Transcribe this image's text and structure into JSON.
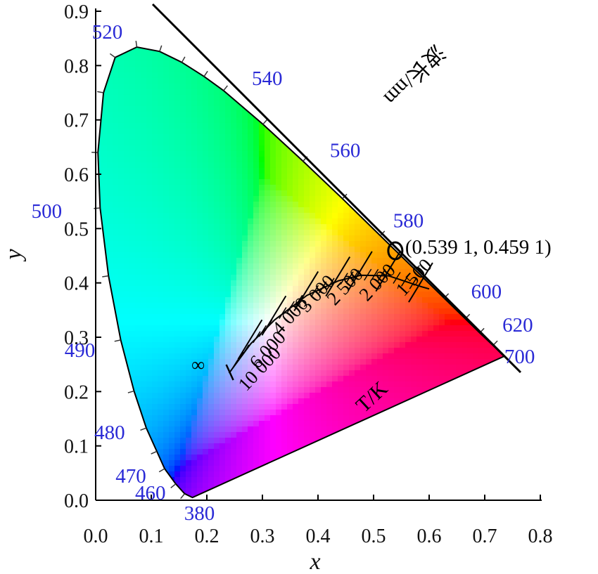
{
  "chart_data": {
    "type": "scatter",
    "title": "",
    "xlabel": "x",
    "ylabel": "y",
    "xlim": [
      0.0,
      0.8
    ],
    "ylim": [
      0.0,
      0.9
    ],
    "xticks": [
      "0.0",
      "0.1",
      "0.2",
      "0.3",
      "0.4",
      "0.5",
      "0.6",
      "0.7",
      "0.8"
    ],
    "yticks": [
      "0.0",
      "0.1",
      "0.2",
      "0.3",
      "0.4",
      "0.5",
      "0.6",
      "0.7",
      "0.8",
      "0.9"
    ],
    "grid": false,
    "wavelength_axis_label": "波长/nm",
    "temperature_axis_label": "T/K",
    "spectral_locus": [
      {
        "label": "380",
        "x": 0.1741,
        "y": 0.005
      },
      {
        "label": "460",
        "x": 0.144,
        "y": 0.03
      },
      {
        "label": "470",
        "x": 0.124,
        "y": 0.058
      },
      {
        "label": "480",
        "x": 0.091,
        "y": 0.133
      },
      {
        "label": "490",
        "x": 0.045,
        "y": 0.295
      },
      {
        "label": "500",
        "x": 0.008,
        "y": 0.538
      },
      {
        "label": "520",
        "x": 0.074,
        "y": 0.834
      },
      {
        "label": "540",
        "x": 0.23,
        "y": 0.754
      },
      {
        "label": "560",
        "x": 0.373,
        "y": 0.624
      },
      {
        "label": "580",
        "x": 0.512,
        "y": 0.487
      },
      {
        "label": "600",
        "x": 0.627,
        "y": 0.372
      },
      {
        "label": "620",
        "x": 0.691,
        "y": 0.308
      },
      {
        "label": "700",
        "x": 0.735,
        "y": 0.265
      }
    ],
    "planckian_locus": [
      {
        "label": "1 500",
        "x": 0.586,
        "y": 0.393
      },
      {
        "label": "2 000",
        "x": 0.527,
        "y": 0.413
      },
      {
        "label": "2 500",
        "x": 0.477,
        "y": 0.414
      },
      {
        "label": "3 000",
        "x": 0.437,
        "y": 0.404
      },
      {
        "label": "4 000",
        "x": 0.38,
        "y": 0.377
      },
      {
        "label": "6 000",
        "x": 0.322,
        "y": 0.332
      },
      {
        "label": "10 000",
        "x": 0.279,
        "y": 0.288
      },
      {
        "label": "∞",
        "x": 0.24,
        "y": 0.234
      }
    ],
    "marked_point": {
      "label": "(0.539 1, 0.459 1)",
      "x": 0.5391,
      "y": 0.4591
    }
  }
}
